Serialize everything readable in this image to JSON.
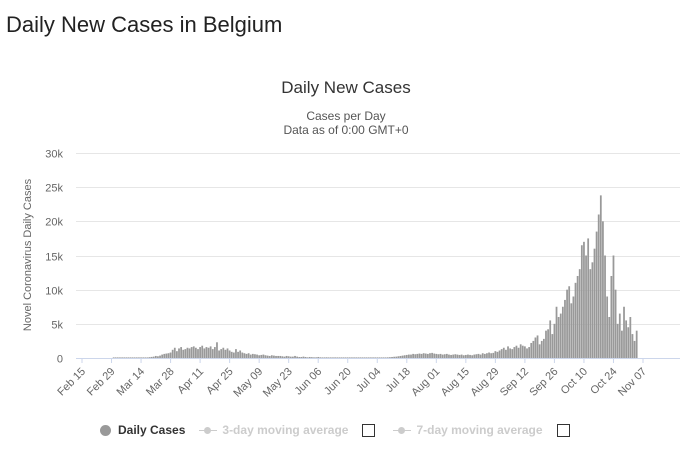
{
  "page": {
    "heading": "Daily New Cases in Belgium"
  },
  "legend": {
    "items": [
      {
        "label": "Daily Cases",
        "active": true,
        "color": "#999999"
      },
      {
        "label": "3-day moving average",
        "active": false,
        "color": "#cccccc"
      },
      {
        "label": "7-day moving average",
        "active": false,
        "color": "#cccccc"
      }
    ]
  },
  "chart_data": {
    "type": "bar",
    "title": "Daily New Cases",
    "subtitle_lines": [
      "Cases per Day",
      "Data as of 0:00 GMT+0"
    ],
    "ylabel": "Novel Coronavirus Daily Cases",
    "xlabel": "",
    "x_start": "2020-02-15",
    "x_tick_labels": [
      "Feb 15",
      "Feb 29",
      "Mar 14",
      "Mar 28",
      "Apr 11",
      "Apr 25",
      "May 09",
      "May 23",
      "Jun 06",
      "Jun 20",
      "Jul 04",
      "Jul 18",
      "Aug 01",
      "Aug 15",
      "Aug 29",
      "Sep 12",
      "Sep 26",
      "Oct 10",
      "Oct 24",
      "Nov 07"
    ],
    "ylim": [
      0,
      30000
    ],
    "y_ticks": [
      0,
      5000,
      10000,
      15000,
      20000,
      25000,
      30000
    ],
    "y_tick_labels": [
      "0",
      "5k",
      "10k",
      "15k",
      "20k",
      "25k",
      "30k"
    ],
    "grid": true,
    "legend_position": "bottom",
    "bar_color": "#999999",
    "series": [
      {
        "name": "Daily Cases",
        "values": [
          0,
          0,
          0,
          0,
          0,
          0,
          0,
          0,
          0,
          0,
          0,
          0,
          0,
          0,
          0,
          1,
          1,
          1,
          2,
          2,
          3,
          3,
          4,
          8,
          6,
          5,
          10,
          20,
          30,
          40,
          60,
          80,
          120,
          160,
          200,
          300,
          250,
          350,
          500,
          600,
          650,
          700,
          800,
          1200,
          1500,
          1000,
          1400,
          1600,
          1200,
          1300,
          1500,
          1400,
          1600,
          1700,
          1500,
          1300,
          1600,
          1800,
          1400,
          1600,
          1500,
          1700,
          1300,
          1600,
          2300,
          1100,
          1300,
          1500,
          1200,
          1400,
          1100,
          900,
          800,
          1300,
          900,
          1100,
          800,
          700,
          600,
          700,
          500,
          600,
          550,
          500,
          400,
          450,
          500,
          400,
          350,
          300,
          400,
          350,
          300,
          300,
          300,
          250,
          200,
          300,
          250,
          200,
          200,
          300,
          200,
          150,
          150,
          200,
          150,
          100,
          150,
          120,
          100,
          100,
          150,
          100,
          80,
          90,
          100,
          80,
          70,
          80,
          90,
          70,
          60,
          80,
          70,
          60,
          50,
          70,
          60,
          50,
          60,
          50,
          40,
          60,
          50,
          40,
          50,
          60,
          40,
          50,
          40,
          50,
          60,
          70,
          80,
          100,
          120,
          150,
          180,
          200,
          250,
          300,
          350,
          400,
          450,
          500,
          500,
          600,
          550,
          600,
          650,
          600,
          700,
          650,
          600,
          700,
          750,
          650,
          600,
          550,
          600,
          500,
          550,
          600,
          500,
          450,
          500,
          550,
          500,
          450,
          500,
          400,
          450,
          500,
          450,
          400,
          500,
          550,
          600,
          500,
          700,
          600,
          700,
          800,
          700,
          750,
          1000,
          900,
          1100,
          1300,
          1500,
          1200,
          1700,
          1400,
          1300,
          1600,
          1800,
          1500,
          2000,
          1800,
          1700,
          1400,
          1600,
          2200,
          2500,
          3000,
          3300,
          2000,
          2500,
          2800,
          4000,
          4200,
          5500,
          3500,
          5000,
          7500,
          6000,
          6500,
          7500,
          8500,
          10000,
          10500,
          8000,
          9000,
          11000,
          12000,
          13000,
          16500,
          17000,
          15000,
          17500,
          13000,
          14000,
          16000,
          18500,
          21000,
          23800,
          20000,
          15000,
          9000,
          6000,
          12000,
          15000,
          10000,
          5000,
          6500,
          4000,
          7500,
          5500,
          4500,
          6000,
          3500,
          2500,
          4000
        ]
      }
    ]
  }
}
